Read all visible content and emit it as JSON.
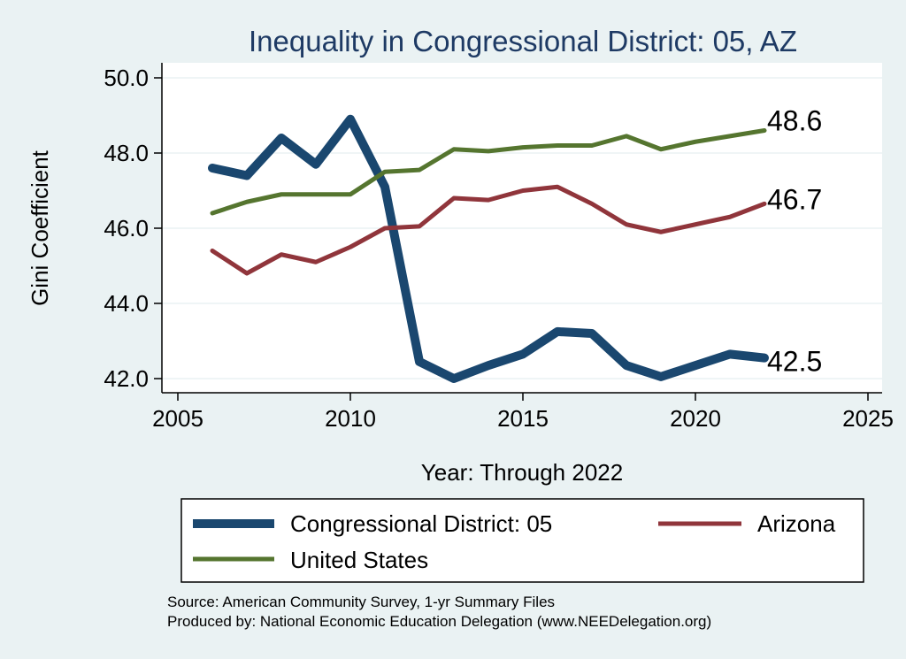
{
  "chart_data": {
    "type": "line",
    "title": "Inequality in Congressional District:  05, AZ",
    "xlabel": "Year: Through 2022",
    "ylabel": "Gini Coefficient",
    "x_ticks": [
      "2005",
      "2010",
      "2015",
      "2020",
      "2025"
    ],
    "y_ticks": [
      "42.0",
      "44.0",
      "46.0",
      "48.0",
      "50.0"
    ],
    "xlim": [
      2005,
      2025
    ],
    "ylim": [
      42,
      50
    ],
    "grid": "horizontal",
    "legend_position": "bottom",
    "x": [
      2006,
      2007,
      2008,
      2009,
      2010,
      2011,
      2012,
      2013,
      2014,
      2015,
      2016,
      2017,
      2018,
      2019,
      2020,
      2021,
      2022
    ],
    "series": [
      {
        "name": "Congressional District:  05",
        "color": "#1a476f",
        "values": [
          47.6,
          47.4,
          48.4,
          47.7,
          48.9,
          47.1,
          42.45,
          42.0,
          42.35,
          42.65,
          43.25,
          43.2,
          42.35,
          42.05,
          42.35,
          42.65,
          42.55
        ],
        "end_label": "42.5"
      },
      {
        "name": "Arizona",
        "color": "#90353b",
        "values": [
          45.4,
          44.8,
          45.3,
          45.1,
          45.5,
          46.0,
          46.05,
          46.8,
          46.75,
          47.0,
          47.1,
          46.65,
          46.1,
          45.9,
          46.1,
          46.3,
          46.65
        ],
        "end_label": "46.7"
      },
      {
        "name": "United States",
        "color": "#55752f",
        "values": [
          46.4,
          46.7,
          46.9,
          46.9,
          46.9,
          47.5,
          47.55,
          48.1,
          48.05,
          48.15,
          48.2,
          48.2,
          48.45,
          48.1,
          48.3,
          48.45,
          48.6
        ],
        "end_label": "48.6"
      }
    ],
    "notes": [
      "Source: American Community Survey, 1-yr Summary Files",
      "Produced by: National Economic Education Delegation (www.NEEDelegation.org)"
    ]
  }
}
